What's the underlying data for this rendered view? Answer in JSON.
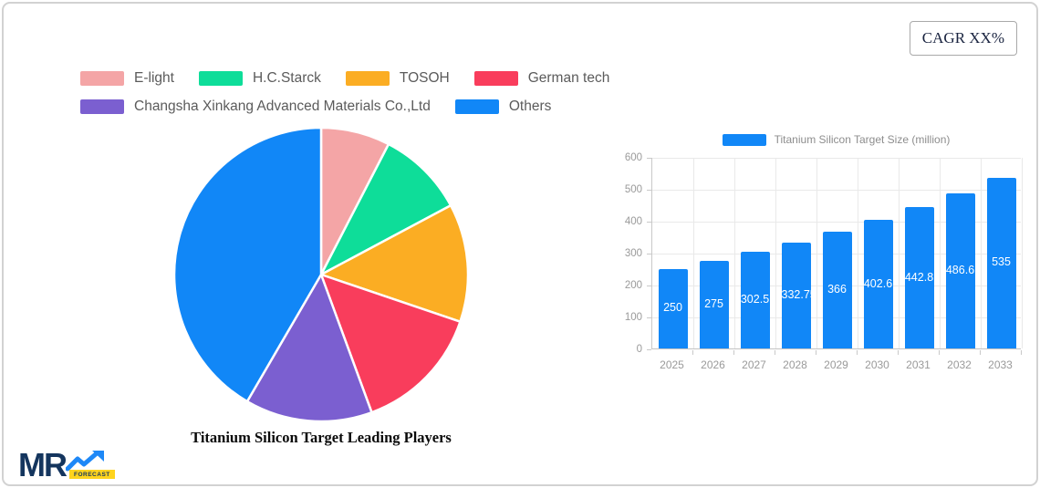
{
  "header": {
    "cagr_label": "CAGR XX%"
  },
  "logo": {
    "text": "MR",
    "sub": "FORECAST"
  },
  "chart_data": [
    {
      "type": "pie",
      "title": "Titanium Silicon Target Leading Players",
      "labels": [
        "E-light",
        "H.C.Starck",
        "TOSOH",
        "German tech",
        "Changsha Xinkang Advanced Materials Co.,Ltd",
        "Others"
      ],
      "values": [
        7.6,
        9.6,
        13.0,
        14.2,
        14.0,
        41.6
      ],
      "colors": [
        "#f4a5a6",
        "#0edd99",
        "#fbad23",
        "#f93d5c",
        "#7b5fd0",
        "#1187f7"
      ],
      "legend_position": "top-left",
      "start_angle_deg": -90,
      "direction": "clockwise",
      "slice_border_color": "#ffffff"
    },
    {
      "type": "bar",
      "categories": [
        "2025",
        "2026",
        "2027",
        "2028",
        "2029",
        "2030",
        "2031",
        "2032",
        "2033"
      ],
      "series": [
        {
          "name": "Titanium Silicon Target Size (million)",
          "values": [
            250,
            275,
            302.5,
            332.75,
            366,
            402.6,
            442.8,
            486.6,
            535
          ]
        }
      ],
      "value_labels": [
        "250",
        "275",
        "302.5",
        "332.75",
        "366",
        "402.6",
        "442.8",
        "486.6",
        "535"
      ],
      "bar_color": "#1187f7",
      "ylim": [
        0,
        600
      ],
      "yticks": [
        0,
        100,
        200,
        300,
        400,
        500,
        600
      ],
      "grid": true,
      "legend_position": "top",
      "value_label_position": "inside-center"
    }
  ]
}
